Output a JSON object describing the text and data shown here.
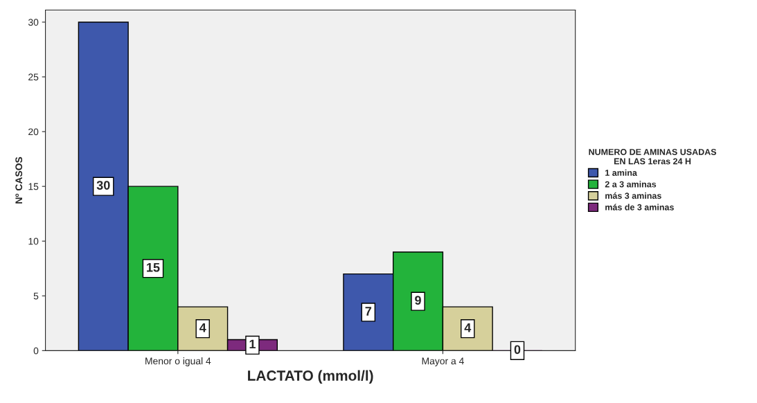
{
  "chart_data": {
    "type": "bar",
    "xlabel": "LACTATO (mmol/l)",
    "ylabel": "Nº CASOS",
    "legend_title": "NUMERO DE AMINAS USADAS\nEN LAS 1eras 24 H",
    "categories": [
      "Menor o igual 4",
      "Mayor a 4"
    ],
    "series": [
      {
        "name": "1 amina",
        "color": "#3e58ac",
        "values": [
          30,
          7
        ]
      },
      {
        "name": "2 a 3 aminas",
        "color": "#23b33b",
        "values": [
          15,
          9
        ]
      },
      {
        "name": "más 3 aminas",
        "color": "#d6d09b",
        "values": [
          4,
          4
        ]
      },
      {
        "name": "más de 3 aminas",
        "color": "#7d2a7d",
        "values": [
          1,
          0
        ]
      }
    ],
    "ylim": [
      0,
      31.1
    ],
    "yticks": [
      0,
      5,
      10,
      15,
      20,
      25,
      30
    ],
    "data_labels": true,
    "legend": "right",
    "grid": false
  }
}
